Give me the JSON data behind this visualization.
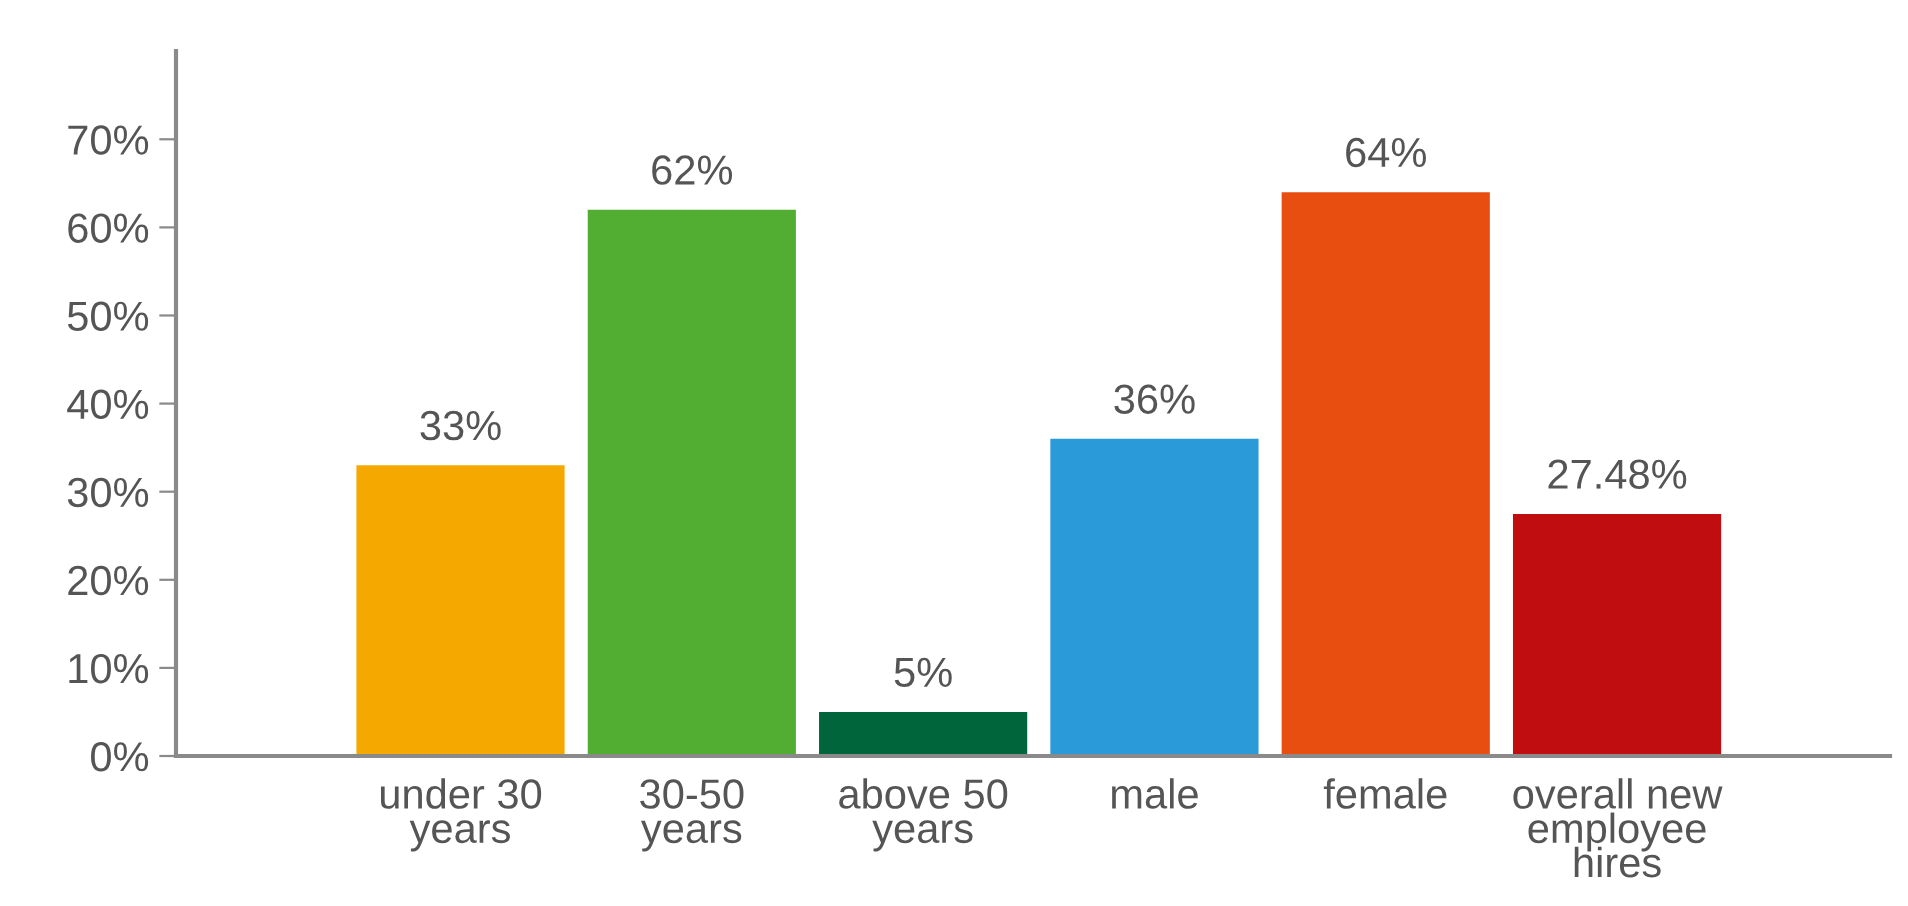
{
  "chart_data": {
    "type": "bar",
    "categories": [
      "under 30\nyears",
      "30-50\nyears",
      "above 50\nyears",
      "male",
      "female",
      "overall new\nemployee\nhires"
    ],
    "values": [
      33,
      62,
      5,
      36,
      64,
      27.48
    ],
    "colors": [
      "#f5a800",
      "#52ae32",
      "#00653a",
      "#2a9ad8",
      "#e84e10",
      "#c00d10"
    ],
    "value_labels": [
      "33%",
      "62%",
      "5%",
      "36%",
      "64%",
      "27.48%"
    ],
    "ylim": [
      0,
      80
    ],
    "yticks": [
      {
        "value": 0,
        "label": "0%"
      },
      {
        "value": 10,
        "label": "10%"
      },
      {
        "value": 20,
        "label": "20%"
      },
      {
        "value": 30,
        "label": "30%"
      },
      {
        "value": 40,
        "label": "40%"
      },
      {
        "value": 50,
        "label": "50%"
      },
      {
        "value": 60,
        "label": "60%"
      },
      {
        "value": 70,
        "label": "70%"
      }
    ],
    "grid": false,
    "legend": false
  }
}
